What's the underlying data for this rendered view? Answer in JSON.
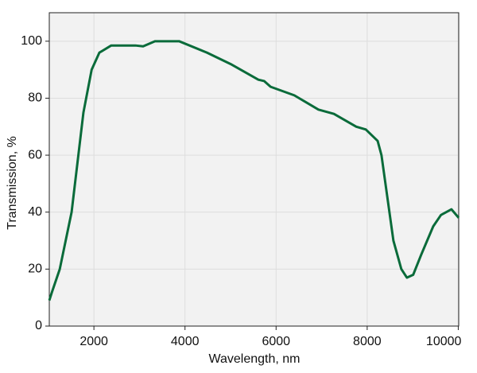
{
  "chart_data": {
    "type": "line",
    "x_label": "Wavelength, nm",
    "y_label": "Transmission, %",
    "x": [
      1020,
      1080,
      1250,
      1510,
      1770,
      1950,
      2120,
      2380,
      2910,
      3080,
      3340,
      3870,
      4480,
      5000,
      5610,
      5740,
      5880,
      6400,
      6930,
      7270,
      7760,
      7970,
      8230,
      8314,
      8576,
      8750,
      8872,
      9010,
      9185,
      9450,
      9620,
      9850,
      10010
    ],
    "series": [
      {
        "color": "#0a6b3a",
        "values": [
          9,
          12,
          20,
          40,
          75,
          90,
          96,
          98.5,
          98.5,
          98.2,
          100,
          100,
          96,
          92,
          86.5,
          86,
          84,
          81,
          76,
          74.5,
          70,
          69,
          65,
          60,
          30,
          20,
          17,
          18,
          25,
          35,
          39,
          41,
          38
        ]
      }
    ],
    "xlim": [
      1020,
      10010
    ],
    "ylim": [
      0,
      110
    ],
    "xticks": [
      2000,
      4000,
      6000,
      8000,
      10000
    ],
    "yticks": [
      0,
      20,
      40,
      60,
      80,
      100
    ],
    "grid": true
  }
}
